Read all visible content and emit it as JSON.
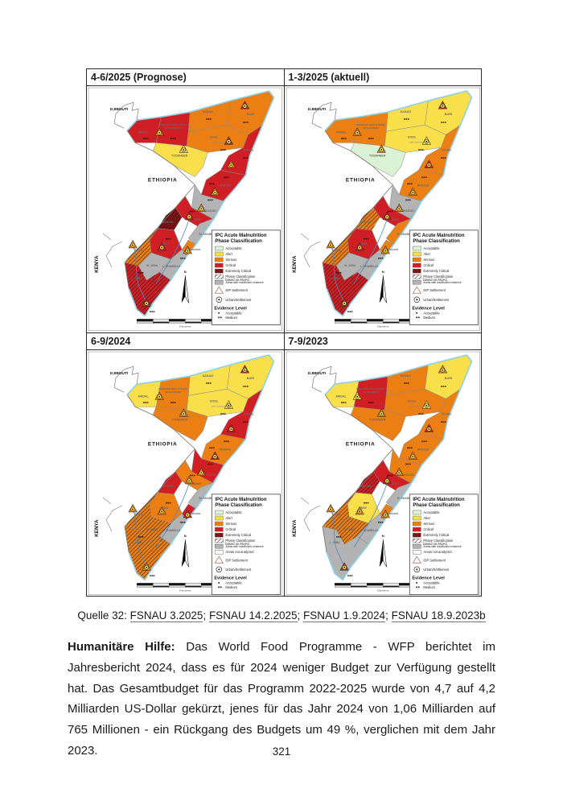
{
  "figure": {
    "panels": [
      {
        "title": "4-6/2025 (Prognose)",
        "has_not_analyzed": false,
        "regions": {
          "awdal": "critical",
          "wgalbeed": "critical",
          "sanag": "serious",
          "bari": "serious",
          "sool": "serious",
          "togdheer": "alert",
          "nugal": "critical",
          "mudug": "critical",
          "galgadud": "insufficient",
          "hiran": "critical",
          "bakool": "extreme muac",
          "gedo": "serious muac",
          "bay": "critical",
          "mshabelle": "insufficient",
          "banadir": "serious",
          "lshabelle": "insufficient",
          "mjuba": "insufficient",
          "ljuba": "critical muac"
        },
        "marker_phases": [
          "critical",
          "serious",
          "alert",
          "critical",
          "serious",
          "serious",
          "serious",
          "critical",
          "critical",
          "serious",
          "serious",
          "critical"
        ]
      },
      {
        "title": "1-3/2025 (aktuell)",
        "has_not_analyzed": false,
        "regions": {
          "awdal": "serious",
          "wgalbeed": "serious",
          "sanag": "alert",
          "bari": "alert",
          "sool": "alert",
          "togdheer": "acceptable",
          "nugal": "serious",
          "mudug": "serious",
          "galgadud": "insufficient",
          "hiran": "critical",
          "bakool": "serious muac",
          "gedo": "serious muac",
          "bay": "critical",
          "mshabelle": "serious",
          "banadir": "serious",
          "lshabelle": "insufficient",
          "mjuba": "insufficient",
          "ljuba": "critical muac"
        },
        "marker_phases": [
          "critical",
          "serious",
          "serious",
          "alert",
          "critical",
          "serious",
          "serious",
          "critical",
          "critical",
          "serious",
          "serious",
          "critical"
        ]
      },
      {
        "title": "6-9/2024",
        "has_not_analyzed": true,
        "regions": {
          "awdal": "alert",
          "wgalbeed": "serious",
          "sanag": "alert",
          "bari": "alert",
          "sool": "alert",
          "togdheer": "serious",
          "nugal": "critical",
          "mudug": "serious",
          "galgadud": "critical",
          "hiran": "serious",
          "bakool": "critical",
          "gedo": "serious muac",
          "bay": "serious",
          "mshabelle": "insufficient",
          "banadir": "critical",
          "lshabelle": "insufficient",
          "mjuba": "serious muac",
          "ljuba": "serious muac"
        },
        "marker_phases": [
          "critical",
          "serious",
          "serious",
          "alert",
          "critical",
          "critical",
          "serious",
          "serious",
          "serious",
          "critical",
          "serious",
          "serious"
        ]
      },
      {
        "title": "7-9/2023",
        "has_not_analyzed": true,
        "regions": {
          "awdal": "alert",
          "wgalbeed": "critical",
          "sanag": "serious",
          "bari": "alert",
          "sool": "serious",
          "togdheer": "serious",
          "nugal": "serious",
          "mudug": "serious",
          "galgadud": "serious",
          "hiran": "critical",
          "bakool": "critical muac",
          "gedo": "serious muac",
          "bay": "alert",
          "mshabelle": "insufficient",
          "banadir": "serious",
          "lshabelle": "insufficient",
          "mjuba": "serious muac",
          "ljuba": "insufficient"
        },
        "marker_phases": [
          "serious",
          "alert",
          "serious",
          "alert",
          "critical",
          "serious",
          "serious",
          "critical",
          "serious",
          "serious",
          "serious",
          "critical"
        ]
      }
    ],
    "legend": {
      "title_line1": "IPC Acute Malnutrition",
      "title_line2": "Phase Classification",
      "items": [
        {
          "key": "acceptable",
          "label": "Acceptable"
        },
        {
          "key": "alert",
          "label": "Alert"
        },
        {
          "key": "serious",
          "label": "Serious"
        },
        {
          "key": "critical",
          "label": "Critical"
        },
        {
          "key": "extreme",
          "label": "Extremely Critical"
        },
        {
          "key": "muac",
          "label": "Phase Classification\nbased on MUAC"
        },
        {
          "key": "insufficient",
          "label": "Areas with insufficient evidence"
        },
        {
          "key": "notanalyzed",
          "label": "Areas not analyzed"
        }
      ],
      "idp_label": "IDP Settlement",
      "urban_label": "Urban/Settlement",
      "evidence_title": "Evidence Level",
      "evidence_items": [
        {
          "dots": 1,
          "label": "Acceptable"
        },
        {
          "dots": 2,
          "label": "Medium"
        }
      ]
    },
    "labels": {
      "djibouti": "DJIBOUTI",
      "ethiopia": "ETHIOPIA",
      "kenya": "KENYA",
      "laascaanood": "Laas Caanood",
      "north": "N",
      "scale": "Kilometers"
    },
    "region_names": {
      "awdal": "AWDAL",
      "wgalbeed": "MAROODI JEEX & SAHIL|(W GALBEED)",
      "sanag": "SANAG",
      "bari": "BARI",
      "sool": "SOOL",
      "togdheer": "TOGDHEER",
      "nugal": "NUGAL",
      "mudug": "MUDUG",
      "galgadud": "GALGADUD",
      "hiran": "HIRAN",
      "bakool": "BAKOOL",
      "gedo": "GEDO",
      "bay": "BAY",
      "mshabelle": "M. SHABELLE",
      "banadir": "BANADIR",
      "lshabelle": "L. SHABELLE",
      "mjuba": "M. JUBA",
      "ljuba": "L. JUBA"
    },
    "palette": {
      "acceptable": "#d9f3d4",
      "alert": "#f9e04a",
      "serious": "#ec7f13",
      "critical": "#d01f24",
      "extreme": "#7d1416",
      "insufficient": "#b3b3b3",
      "notanalyzed": "#ffffff",
      "coast": "#8ed0e8",
      "marker_circle": "#ffe14a"
    }
  },
  "caption": {
    "prefix": "Quelle 32:",
    "links": [
      "FSNAU 3.2025",
      "FSNAU 14.2.2025",
      "FSNAU 1.9.2024",
      "FSNAU 18.9.2023b"
    ]
  },
  "body": {
    "lead": "Humanitäre Hilfe:",
    "text": " Das World Food Programme - WFP berichtet im Jahresbericht 2024, dass es für 2024 weniger Budget zur Verfügung gestellt hat. Das Gesamtbudget für das Programm 2022-2025 wurde von 4,7 auf 4,2 Milliarden US-Dollar gekürzt, jenes für das Jahr 2024 von 1,06 Milliarden auf 765 Millionen - ein Rückgang des Budgets um 49 %, verglichen mit dem Jahr 2023."
  },
  "page_number": "321"
}
